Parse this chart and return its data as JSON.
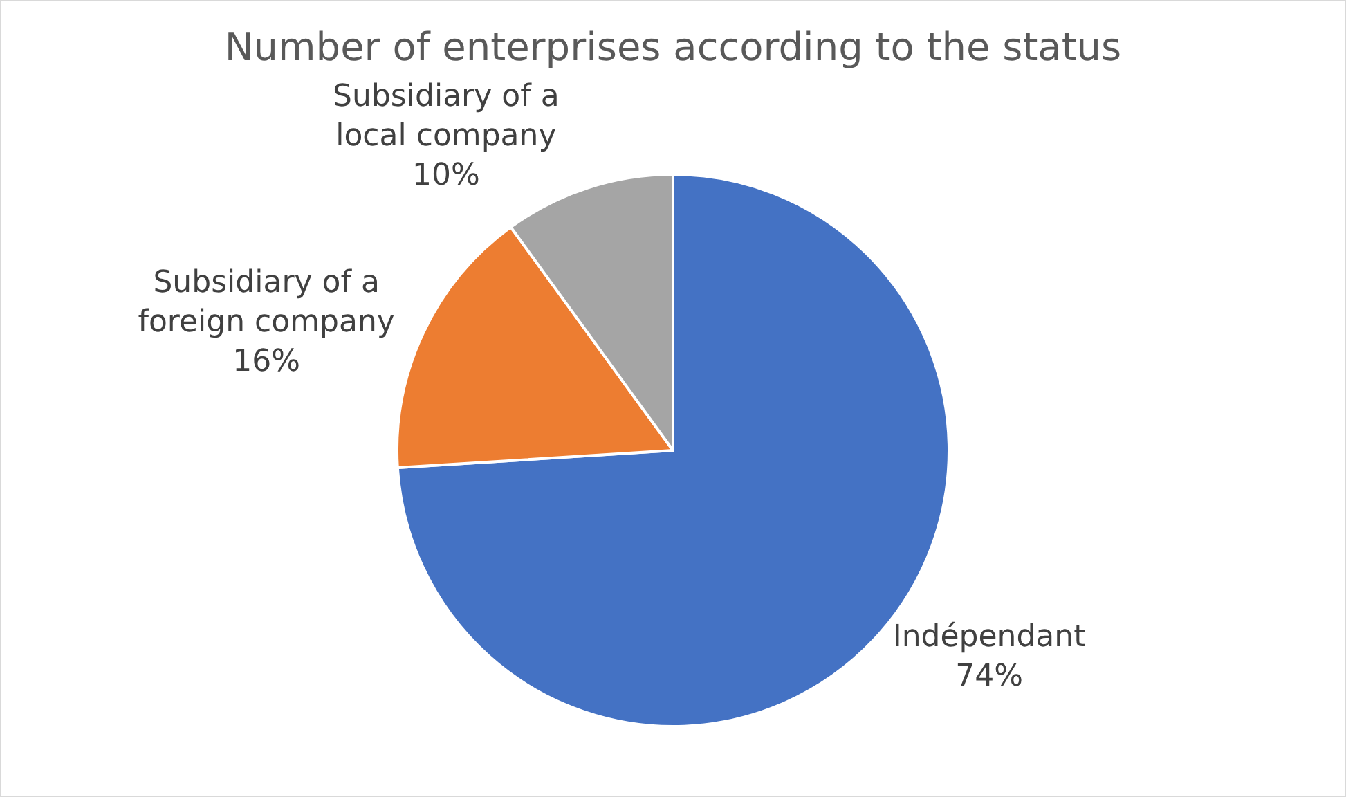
{
  "chart_data": {
    "type": "pie",
    "title": "Number of enterprises according to the status",
    "categories": [
      "Indépendant",
      "Subsidiary of a foreign company",
      "Subsidiary of a local company"
    ],
    "values": [
      74,
      16,
      10
    ],
    "colors": [
      "#4472c4",
      "#ed7d31",
      "#a5a5a5"
    ],
    "value_labels": [
      "74%",
      "16%",
      "10%"
    ],
    "legend": false
  }
}
